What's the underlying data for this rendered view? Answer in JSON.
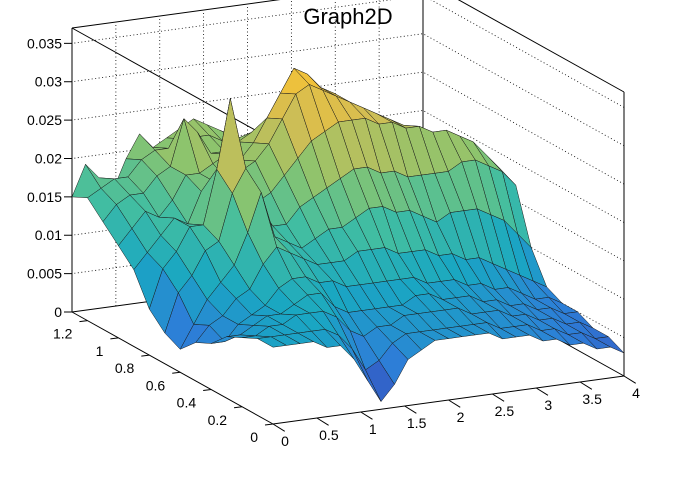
{
  "chart_data": {
    "type": "surface3d",
    "title": "Graph2D",
    "x_ticks": [
      "0",
      "0.5",
      "1",
      "1.5",
      "2",
      "2.5",
      "3",
      "3.5",
      "4"
    ],
    "y_ticks": [
      "0",
      "0.2",
      "0.4",
      "0.6",
      "0.8",
      "1",
      "1.2"
    ],
    "z_ticks": [
      "0",
      "0.005",
      "0.01",
      "0.015",
      "0.02",
      "0.025",
      "0.03",
      "0.035"
    ],
    "xlim": [
      0,
      4
    ],
    "ylim": [
      0,
      1.3
    ],
    "zlim": [
      0,
      0.037
    ],
    "grid": true,
    "palette": [
      "#3a3bb2",
      "#2d7fd8",
      "#19a7c2",
      "#43bea0",
      "#8bc46e",
      "#d2bd54",
      "#f7c234"
    ],
    "rows_y": [
      1.3,
      1.2,
      1.1,
      1.0,
      0.9,
      0.8,
      0.7,
      0.6,
      0.5,
      0.4,
      0.3,
      0.2,
      0.1,
      0.0
    ],
    "surface_z": [
      [
        0.015,
        0.019,
        0.017,
        0.015,
        0.019,
        0.022,
        0.02,
        0.021,
        0.022,
        0.023,
        0.022,
        0.021,
        0.02,
        0.019,
        0.018,
        0.017,
        0.016,
        0.016,
        0.015,
        0.015,
        0.015,
        0.015,
        0.015,
        0.016,
        0.016,
        0.015,
        0.015
      ],
      [
        0.016,
        0.017,
        0.018,
        0.018,
        0.02,
        0.021,
        0.021,
        0.022,
        0.022,
        0.022,
        0.021,
        0.021,
        0.02,
        0.019,
        0.018,
        0.017,
        0.017,
        0.016,
        0.016,
        0.016,
        0.015,
        0.015,
        0.015,
        0.015,
        0.015,
        0.015,
        0.015
      ],
      [
        0.014,
        0.016,
        0.017,
        0.017,
        0.019,
        0.02,
        0.026,
        0.024,
        0.021,
        0.021,
        0.022,
        0.023,
        0.024,
        0.024,
        0.023,
        0.022,
        0.021,
        0.02,
        0.019,
        0.018,
        0.017,
        0.016,
        0.015,
        0.015,
        0.014,
        0.014,
        0.014
      ],
      [
        0.012,
        0.014,
        0.016,
        0.015,
        0.017,
        0.02,
        0.02,
        0.021,
        0.022,
        0.021,
        0.023,
        0.026,
        0.029,
        0.032,
        0.031,
        0.029,
        0.028,
        0.026,
        0.025,
        0.024,
        0.023,
        0.022,
        0.021,
        0.02,
        0.018,
        0.016,
        0.014
      ],
      [
        0.01,
        0.012,
        0.014,
        0.016,
        0.015,
        0.019,
        0.02,
        0.02,
        0.021,
        0.022,
        0.024,
        0.027,
        0.03,
        0.031,
        0.03,
        0.029,
        0.028,
        0.027,
        0.026,
        0.025,
        0.024,
        0.023,
        0.022,
        0.021,
        0.02,
        0.018,
        0.016
      ],
      [
        0.006,
        0.011,
        0.013,
        0.016,
        0.016,
        0.023,
        0.032,
        0.02,
        0.018,
        0.019,
        0.021,
        0.023,
        0.025,
        0.026,
        0.027,
        0.027,
        0.027,
        0.026,
        0.026,
        0.025,
        0.025,
        0.024,
        0.024,
        0.023,
        0.022,
        0.02,
        0.018
      ],
      [
        0.004,
        0.009,
        0.011,
        0.014,
        0.015,
        0.021,
        0.024,
        0.018,
        0.016,
        0.016,
        0.018,
        0.019,
        0.02,
        0.021,
        0.022,
        0.022,
        0.021,
        0.021,
        0.02,
        0.02,
        0.02,
        0.02,
        0.021,
        0.021,
        0.02,
        0.019,
        0.017
      ],
      [
        0.003,
        0.006,
        0.009,
        0.011,
        0.013,
        0.017,
        0.022,
        0.016,
        0.015,
        0.014,
        0.015,
        0.016,
        0.016,
        0.017,
        0.018,
        0.018,
        0.017,
        0.017,
        0.016,
        0.015,
        0.016,
        0.016,
        0.016,
        0.015,
        0.014,
        0.012,
        0.01
      ],
      [
        0.005,
        0.007,
        0.008,
        0.01,
        0.011,
        0.014,
        0.016,
        0.015,
        0.014,
        0.013,
        0.013,
        0.013,
        0.014,
        0.014,
        0.014,
        0.013,
        0.013,
        0.013,
        0.012,
        0.012,
        0.011,
        0.011,
        0.01,
        0.009,
        0.008,
        0.007,
        0.006
      ],
      [
        0.006,
        0.006,
        0.008,
        0.009,
        0.01,
        0.012,
        0.013,
        0.013,
        0.012,
        0.012,
        0.011,
        0.011,
        0.011,
        0.011,
        0.011,
        0.011,
        0.01,
        0.01,
        0.01,
        0.009,
        0.009,
        0.008,
        0.008,
        0.007,
        0.006,
        0.006,
        0.005
      ],
      [
        0.008,
        0.008,
        0.009,
        0.01,
        0.01,
        0.011,
        0.012,
        0.012,
        0.01,
        0.009,
        0.009,
        0.009,
        0.009,
        0.009,
        0.01,
        0.01,
        0.009,
        0.009,
        0.009,
        0.008,
        0.008,
        0.007,
        0.007,
        0.006,
        0.006,
        0.005,
        0.005
      ],
      [
        0.009,
        0.009,
        0.01,
        0.01,
        0.011,
        0.011,
        0.011,
        0.01,
        0.008,
        0.007,
        0.008,
        0.008,
        0.009,
        0.009,
        0.009,
        0.009,
        0.009,
        0.008,
        0.008,
        0.008,
        0.007,
        0.007,
        0.006,
        0.006,
        0.005,
        0.005,
        0.004
      ],
      [
        0.01,
        0.01,
        0.01,
        0.01,
        0.01,
        0.01,
        0.009,
        0.007,
        0.004,
        0.005,
        0.007,
        0.008,
        0.008,
        0.008,
        0.008,
        0.008,
        0.008,
        0.008,
        0.007,
        0.007,
        0.007,
        0.006,
        0.006,
        0.005,
        0.005,
        0.004,
        0.004
      ],
      [
        0.01,
        0.01,
        0.01,
        0.01,
        0.009,
        0.009,
        0.007,
        0.004,
        0.001,
        0.003,
        0.006,
        0.007,
        0.008,
        0.008,
        0.008,
        0.008,
        0.008,
        0.007,
        0.007,
        0.007,
        0.006,
        0.006,
        0.005,
        0.005,
        0.004,
        0.004,
        0.003
      ]
    ]
  }
}
